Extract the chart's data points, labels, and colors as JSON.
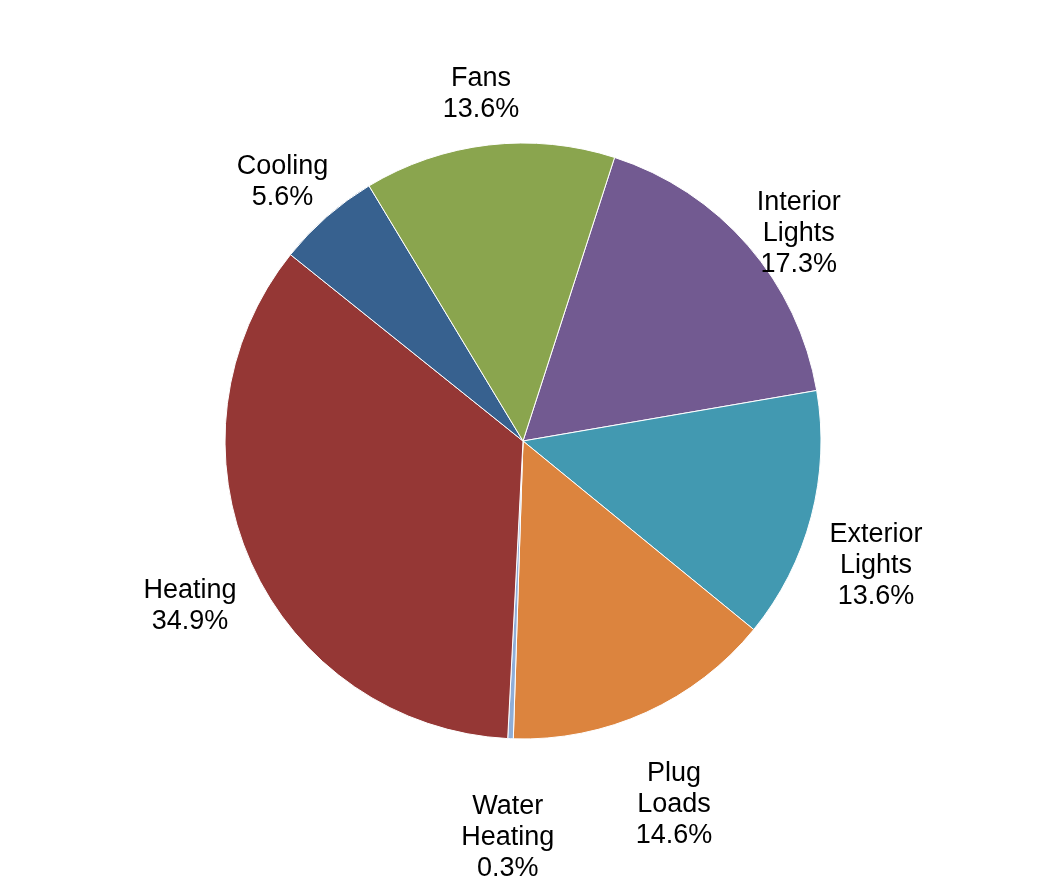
{
  "chart_data": {
    "type": "pie",
    "categories": [
      "Interior Lights",
      "Exterior Lights",
      "Plug Loads",
      "Water Heating",
      "Heating",
      "Cooling",
      "Fans"
    ],
    "values": [
      17.3,
      13.6,
      14.6,
      0.3,
      34.9,
      5.6,
      13.6
    ],
    "value_labels": [
      "17.3%",
      "13.6%",
      "14.6%",
      "0.3%",
      "34.9%",
      "5.6%",
      "13.6%"
    ],
    "colors": [
      "#725a91",
      "#4299b1",
      "#dc843e",
      "#8faed8",
      "#953735",
      "#37618f",
      "#8aa54e"
    ]
  }
}
